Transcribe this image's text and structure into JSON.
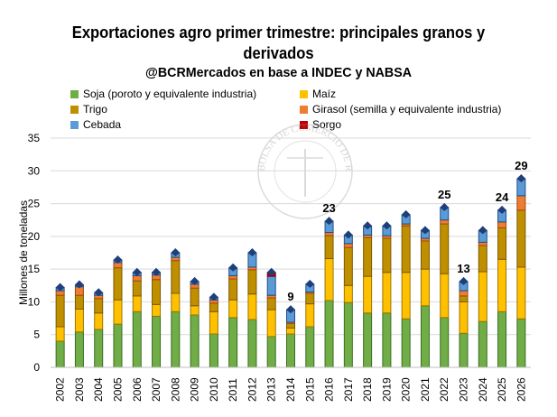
{
  "title_line1": "Exportaciones agro primer trimestre: principales granos y",
  "title_line2": "derivados",
  "subtitle": "@BCRMercados en base a INDEC y NABSA",
  "watermark": "BOLSA DE COMERCIO DE ROSARIO",
  "chart_data": {
    "type": "bar",
    "stacked": true,
    "title": "Exportaciones agro primer trimestre: principales granos y derivados",
    "subtitle": "@BCRMercados en base a INDEC y NABSA",
    "xlabel": "",
    "ylabel": "Millones de toneladas",
    "ylim": [
      0,
      35
    ],
    "yticks": [
      "0",
      "5",
      "10",
      "15",
      "20",
      "25",
      "30",
      "35"
    ],
    "grid": true,
    "legend_position": "top",
    "categories": [
      "2002",
      "2003",
      "2004",
      "2005",
      "2006",
      "2007",
      "2008",
      "2009",
      "2010",
      "2011",
      "2012",
      "2013",
      "2014",
      "2015",
      "2016",
      "2017",
      "2018",
      "2019",
      "2020",
      "2021",
      "2022",
      "2023",
      "2024",
      "2025",
      "2026"
    ],
    "series": [
      {
        "name": "Soja (poroto y equivalente industria)",
        "color": "#70AD47",
        "stroke": "#3B6E22",
        "values": [
          4.0,
          5.4,
          5.8,
          6.6,
          8.5,
          7.8,
          8.5,
          8.0,
          5.1,
          7.6,
          7.3,
          4.7,
          5.1,
          6.2,
          10.2,
          9.9,
          8.3,
          8.3,
          7.4,
          9.4,
          7.6,
          5.2,
          7.0,
          8.5,
          7.4
        ]
      },
      {
        "name": "Maíz",
        "color": "#FFC000",
        "stroke": "#9C7600",
        "values": [
          2.2,
          3.5,
          2.5,
          3.7,
          2.4,
          1.8,
          2.8,
          1.4,
          3.4,
          2.7,
          3.9,
          4.1,
          0.9,
          3.5,
          6.4,
          2.6,
          5.6,
          6.2,
          7.1,
          5.6,
          6.7,
          4.8,
          7.6,
          8.0,
          7.9
        ]
      },
      {
        "name": "Trigo",
        "color": "#BF8F00",
        "stroke": "#7A5B00",
        "values": [
          4.8,
          2.1,
          2.2,
          4.9,
          2.3,
          3.8,
          5.0,
          2.7,
          1.3,
          3.2,
          3.7,
          1.8,
          0.7,
          1.6,
          3.5,
          5.8,
          5.9,
          5.2,
          7.1,
          4.3,
          7.6,
          0.9,
          4.0,
          4.8,
          8.7
        ]
      },
      {
        "name": "Girasol (semilla y equivalente industria)",
        "color": "#ED7D31",
        "stroke": "#A04A10",
        "values": [
          0.7,
          1.3,
          0.5,
          0.8,
          0.8,
          0.7,
          0.5,
          0.6,
          0.5,
          0.5,
          0.4,
          0.4,
          0.2,
          0.2,
          0.5,
          0.6,
          0.4,
          0.4,
          0.3,
          0.4,
          0.6,
          0.8,
          0.5,
          0.9,
          2.2
        ]
      },
      {
        "name": "Cebada",
        "color": "#5B9BD5",
        "stroke": "#1F4E8C",
        "values": [
          0.5,
          0.3,
          0.4,
          0.4,
          0.5,
          0.4,
          0.7,
          0.4,
          0.4,
          1.2,
          2.2,
          2.9,
          1.9,
          1.2,
          1.7,
          1.3,
          1.4,
          1.5,
          1.4,
          1.2,
          1.9,
          1.4,
          1.8,
          1.8,
          2.6
        ]
      },
      {
        "name": "Sorgo",
        "color": "#C00000",
        "stroke": "#800000",
        "values": [
          0,
          0,
          0,
          0,
          0,
          0,
          0,
          0,
          0,
          0,
          0,
          0.6,
          0,
          0,
          0,
          0,
          0,
          0,
          0,
          0,
          0,
          0,
          0,
          0,
          0
        ]
      }
    ],
    "total_labels": [
      {
        "category": "2014",
        "text": "9"
      },
      {
        "category": "2016",
        "text": "23"
      },
      {
        "category": "2022",
        "text": "25"
      },
      {
        "category": "2023",
        "text": "13"
      },
      {
        "category": "2025",
        "text": "24"
      },
      {
        "category": "2026",
        "text": "29"
      }
    ]
  }
}
